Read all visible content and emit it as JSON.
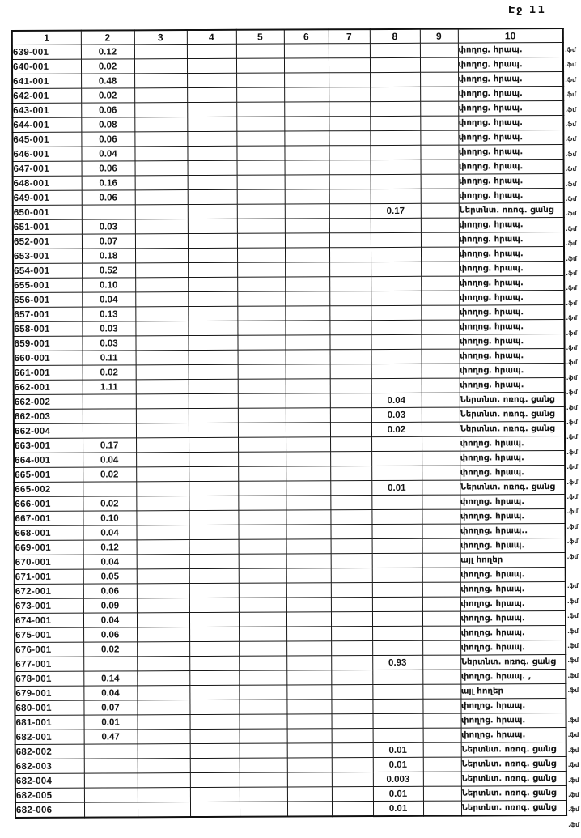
{
  "page": {
    "page_label": "Էջ 11"
  },
  "table": {
    "columns": [
      "1",
      "2",
      "3",
      "4",
      "5",
      "6",
      "7",
      "8",
      "9",
      "10"
    ],
    "margin_fragment": ".ֆմ",
    "rows": [
      {
        "id": "639-001",
        "col2": "0.12",
        "col8": "",
        "col10": "փողոց. հրապ.",
        "margin": true
      },
      {
        "id": "640-001",
        "col2": "0.02",
        "col8": "",
        "col10": "փողոց. հրապ.",
        "margin": true
      },
      {
        "id": "641-001",
        "col2": "0.48",
        "col8": "",
        "col10": "փողոց. հրապ.",
        "margin": true
      },
      {
        "id": "642-001",
        "col2": "0.02",
        "col8": "",
        "col10": "փողոց. հրապ.",
        "margin": true
      },
      {
        "id": "643-001",
        "col2": "0.06",
        "col8": "",
        "col10": "փողոց. հրապ.",
        "margin": true
      },
      {
        "id": "644-001",
        "col2": "0.08",
        "col8": "",
        "col10": "փողոց. հրապ.",
        "margin": true
      },
      {
        "id": "645-001",
        "col2": "0.06",
        "col8": "",
        "col10": "փողոց. հրապ.",
        "margin": true
      },
      {
        "id": "646-001",
        "col2": "0.04",
        "col8": "",
        "col10": "փողոց. հրապ.",
        "margin": true
      },
      {
        "id": "647-001",
        "col2": "0.06",
        "col8": "",
        "col10": "փողոց. հրապ.",
        "margin": true
      },
      {
        "id": "648-001",
        "col2": "0.16",
        "col8": "",
        "col10": "փողոց. հրապ.",
        "margin": true
      },
      {
        "id": "649-001",
        "col2": "0.06",
        "col8": "",
        "col10": "փողոց. հրապ.",
        "margin": true
      },
      {
        "id": "650-001",
        "col2": "",
        "col8": "0.17",
        "col10": "Ներտնտ. ոռոգ. ցանց",
        "margin": true
      },
      {
        "id": "651-001",
        "col2": "0.03",
        "col8": "",
        "col10": "փողոց. հրապ.",
        "margin": true
      },
      {
        "id": "652-001",
        "col2": "0.07",
        "col8": "",
        "col10": "փողոց. հրապ.",
        "margin": true
      },
      {
        "id": "653-001",
        "col2": "0.18",
        "col8": "",
        "col10": "փողոց. հրապ.",
        "margin": true
      },
      {
        "id": "654-001",
        "col2": "0.52",
        "col8": "",
        "col10": "փողոց. հրապ.",
        "margin": true
      },
      {
        "id": "655-001",
        "col2": "0.10",
        "col8": "",
        "col10": "փողոց. հրապ.",
        "margin": true
      },
      {
        "id": "656-001",
        "col2": "0.04",
        "col8": "",
        "col10": "փողոց. հրապ.",
        "margin": true
      },
      {
        "id": "657-001",
        "col2": "0.13",
        "col8": "",
        "col10": "փողոց. հրապ.",
        "margin": true
      },
      {
        "id": "658-001",
        "col2": "0.03",
        "col8": "",
        "col10": "փողոց. հրապ.",
        "margin": true
      },
      {
        "id": "659-001",
        "col2": "0.03",
        "col8": "",
        "col10": "փողոց. հրապ.",
        "margin": true
      },
      {
        "id": "660-001",
        "col2": "0.11",
        "col8": "",
        "col10": "փողոց. հրապ.",
        "margin": true
      },
      {
        "id": "661-001",
        "col2": "0.02",
        "col8": "",
        "col10": "փողոց. հրապ.",
        "margin": true
      },
      {
        "id": "662-001",
        "col2": "1.11",
        "col8": "",
        "col10": "փողոց. հրապ.",
        "margin": true
      },
      {
        "id": "662-002",
        "col2": "",
        "col8": "0.04",
        "col10": "Ներտնտ. ոռոգ. ցանց",
        "margin": true
      },
      {
        "id": "662-003",
        "col2": "",
        "col8": "0.03",
        "col10": "Ներտնտ. ոռոգ. ցանց",
        "margin": true
      },
      {
        "id": "662-004",
        "col2": "",
        "col8": "0.02",
        "col10": "Ներտնտ. ոռոգ. ցանց",
        "margin": true
      },
      {
        "id": "663-001",
        "col2": "0.17",
        "col8": "",
        "col10": "փողոց. հրապ.",
        "margin": true
      },
      {
        "id": "664-001",
        "col2": "0.04",
        "col8": "",
        "col10": "փողոց. հրապ.",
        "margin": true
      },
      {
        "id": "665-001",
        "col2": "0.02",
        "col8": "",
        "col10": "փողոց. հրապ.",
        "margin": true
      },
      {
        "id": "665-002",
        "col2": "",
        "col8": "0.01",
        "col10": "Ներտնտ. ոռոգ. ցանց",
        "margin": true
      },
      {
        "id": "666-001",
        "col2": "0.02",
        "col8": "",
        "col10": "փողոց. հրապ.",
        "margin": true
      },
      {
        "id": "667-001",
        "col2": "0.10",
        "col8": "",
        "col10": "փողոց. հրապ.",
        "margin": true
      },
      {
        "id": "668-001",
        "col2": "0.04",
        "col8": "",
        "col10": "փողոց. հրապ..",
        "margin": true
      },
      {
        "id": "669-001",
        "col2": "0.12",
        "col8": "",
        "col10": "փողոց. հրապ.",
        "margin": true
      },
      {
        "id": "670-001",
        "col2": "0.04",
        "col8": "",
        "col10": "այլ հողեր",
        "margin": false
      },
      {
        "id": "671-001",
        "col2": "0.05",
        "col8": "",
        "col10": "փողոց. հրապ.",
        "margin": true
      },
      {
        "id": "672-001",
        "col2": "0.06",
        "col8": "",
        "col10": "փողոց. հրապ.",
        "margin": true
      },
      {
        "id": "673-001",
        "col2": "0.09",
        "col8": "",
        "col10": "փողոց. հրապ.",
        "margin": true
      },
      {
        "id": "674-001",
        "col2": "0.04",
        "col8": "",
        "col10": "փողոց. հրապ.",
        "margin": true
      },
      {
        "id": "675-001",
        "col2": "0.06",
        "col8": "",
        "col10": "փողոց. հրապ.",
        "margin": true
      },
      {
        "id": "676-001",
        "col2": "0.02",
        "col8": "",
        "col10": "փողոց. հրապ.",
        "margin": true
      },
      {
        "id": "677-001",
        "col2": "",
        "col8": "0.93",
        "col10": "Ներտնտ. ոռոգ. ցանց",
        "margin": true
      },
      {
        "id": "678-001",
        "col2": "0.14",
        "col8": "",
        "col10": "փողոց. հրապ. ,",
        "margin": true
      },
      {
        "id": "679-001",
        "col2": "0.04",
        "col8": "",
        "col10": "այլ հողեր",
        "margin": false
      },
      {
        "id": "680-001",
        "col2": "0.07",
        "col8": "",
        "col10": "փողոց. հրապ.",
        "margin": true
      },
      {
        "id": "681-001",
        "col2": "0.01",
        "col8": "",
        "col10": "փողոց. հրապ.",
        "margin": true
      },
      {
        "id": "682-001",
        "col2": "0.47",
        "col8": "",
        "col10": "փողոց. հրապ.",
        "margin": true
      },
      {
        "id": "682-002",
        "col2": "",
        "col8": "0.01",
        "col10": "Ներտնտ. ոռոգ. ցանց",
        "margin": true
      },
      {
        "id": "682-003",
        "col2": "",
        "col8": "0.01",
        "col10": "Ներտնտ. ոռոգ. ցանց",
        "margin": true
      },
      {
        "id": "682-004",
        "col2": "",
        "col8": "0.003",
        "col10": "Ներտնտ. ոռոգ. ցանց",
        "margin": true
      },
      {
        "id": "682-005",
        "col2": "",
        "col8": "0.01",
        "col10": "Ներտնտ. ոռոգ. ցանց",
        "margin": true
      },
      {
        "id": "682-006",
        "col2": "",
        "col8": "0.01",
        "col10": "Ներտնտ. ոռոգ. ցանց",
        "margin": true
      }
    ]
  }
}
